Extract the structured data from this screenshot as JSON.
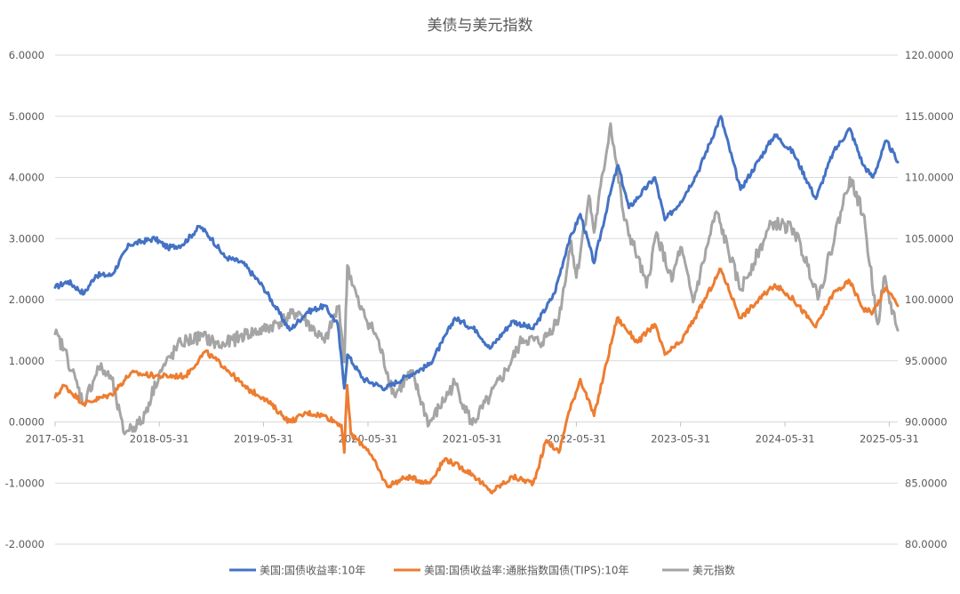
{
  "chart_data": {
    "type": "line",
    "title": "美债与美元指数",
    "x_ticks": [
      "2017-05-31",
      "2018-05-31",
      "2019-05-31",
      "2020-05-31",
      "2021-05-31",
      "2022-05-31",
      "2023-05-31",
      "2024-05-31",
      "2025-05-31"
    ],
    "x_range": [
      "2017-05-31",
      "2025-06-30"
    ],
    "y_left": {
      "min": -2,
      "max": 6,
      "step": 1,
      "tick_labels": [
        "-2.0000",
        "-1.0000",
        "0.0000",
        "1.0000",
        "2.0000",
        "3.0000",
        "4.0000",
        "5.0000",
        "6.0000"
      ]
    },
    "y_right": {
      "min": 80,
      "max": 120,
      "step": 5,
      "tick_labels": [
        "80.0000",
        "85.0000",
        "90.0000",
        "95.0000",
        "100.0000",
        "105.0000",
        "110.0000",
        "115.0000",
        "120.0000"
      ]
    },
    "grid": "horizontal",
    "legend_position": "bottom",
    "series": [
      {
        "name": "美国:国债收益率:10年",
        "axis": "left",
        "color": "#4472C4",
        "points": [
          [
            "2017-05-31",
            2.2
          ],
          [
            "2017-07-15",
            2.3
          ],
          [
            "2017-09-10",
            2.1
          ],
          [
            "2017-10-20",
            2.4
          ],
          [
            "2017-12-15",
            2.4
          ],
          [
            "2018-02-15",
            2.9
          ],
          [
            "2018-05-15",
            3.0
          ],
          [
            "2018-06-30",
            2.85
          ],
          [
            "2018-08-20",
            2.9
          ],
          [
            "2018-10-20",
            3.2
          ],
          [
            "2018-11-30",
            3.0
          ],
          [
            "2019-01-15",
            2.7
          ],
          [
            "2019-03-20",
            2.6
          ],
          [
            "2019-05-31",
            2.2
          ],
          [
            "2019-08-31",
            1.5
          ],
          [
            "2019-10-31",
            1.8
          ],
          [
            "2019-12-31",
            1.9
          ],
          [
            "2020-02-15",
            1.6
          ],
          [
            "2020-03-09",
            0.55
          ],
          [
            "2020-03-20",
            1.1
          ],
          [
            "2020-05-15",
            0.7
          ],
          [
            "2020-07-31",
            0.55
          ],
          [
            "2020-10-15",
            0.75
          ],
          [
            "2020-12-31",
            0.93
          ],
          [
            "2021-02-15",
            1.3
          ],
          [
            "2021-03-31",
            1.7
          ],
          [
            "2021-06-15",
            1.5
          ],
          [
            "2021-08-01",
            1.2
          ],
          [
            "2021-10-20",
            1.65
          ],
          [
            "2021-12-31",
            1.52
          ],
          [
            "2022-03-15",
            2.1
          ],
          [
            "2022-05-01",
            2.9
          ],
          [
            "2022-06-14",
            3.4
          ],
          [
            "2022-08-01",
            2.6
          ],
          [
            "2022-09-30",
            3.8
          ],
          [
            "2022-10-24",
            4.2
          ],
          [
            "2022-12-01",
            3.5
          ],
          [
            "2023-03-02",
            4.0
          ],
          [
            "2023-04-06",
            3.3
          ],
          [
            "2023-05-31",
            3.6
          ],
          [
            "2023-08-01",
            4.1
          ],
          [
            "2023-10-19",
            5.0
          ],
          [
            "2023-12-27",
            3.8
          ],
          [
            "2024-04-25",
            4.7
          ],
          [
            "2024-06-30",
            4.4
          ],
          [
            "2024-09-16",
            3.65
          ],
          [
            "2024-11-15",
            4.4
          ],
          [
            "2025-01-13",
            4.8
          ],
          [
            "2025-03-01",
            4.2
          ],
          [
            "2025-04-04",
            4.0
          ],
          [
            "2025-05-21",
            4.6
          ],
          [
            "2025-06-30",
            4.25
          ]
        ]
      },
      {
        "name": "美国:国债收益率:通胀指数国债(TIPS):10年",
        "axis": "left",
        "color": "#ED7D31",
        "points": [
          [
            "2017-05-31",
            0.4
          ],
          [
            "2017-07-01",
            0.6
          ],
          [
            "2017-09-08",
            0.3
          ],
          [
            "2017-12-15",
            0.45
          ],
          [
            "2018-02-20",
            0.8
          ],
          [
            "2018-05-31",
            0.75
          ],
          [
            "2018-08-31",
            0.75
          ],
          [
            "2018-11-08",
            1.15
          ],
          [
            "2019-01-15",
            0.9
          ],
          [
            "2019-03-31",
            0.55
          ],
          [
            "2019-05-31",
            0.4
          ],
          [
            "2019-08-31",
            0.0
          ],
          [
            "2019-10-31",
            0.15
          ],
          [
            "2019-12-31",
            0.1
          ],
          [
            "2020-02-28",
            -0.05
          ],
          [
            "2020-03-09",
            -0.5
          ],
          [
            "2020-03-19",
            0.6
          ],
          [
            "2020-04-01",
            -0.2
          ],
          [
            "2020-05-31",
            -0.45
          ],
          [
            "2020-08-06",
            -1.05
          ],
          [
            "2020-10-15",
            -0.9
          ],
          [
            "2020-12-31",
            -1.0
          ],
          [
            "2021-02-25",
            -0.6
          ],
          [
            "2021-05-31",
            -0.85
          ],
          [
            "2021-08-04",
            -1.15
          ],
          [
            "2021-10-20",
            -0.9
          ],
          [
            "2021-12-31",
            -1.0
          ],
          [
            "2022-02-15",
            -0.3
          ],
          [
            "2022-03-31",
            -0.5
          ],
          [
            "2022-05-01",
            0.1
          ],
          [
            "2022-06-14",
            0.7
          ],
          [
            "2022-08-01",
            0.1
          ],
          [
            "2022-10-21",
            1.7
          ],
          [
            "2022-12-31",
            1.3
          ],
          [
            "2023-03-01",
            1.6
          ],
          [
            "2023-04-06",
            1.1
          ],
          [
            "2023-05-31",
            1.3
          ],
          [
            "2023-08-01",
            1.8
          ],
          [
            "2023-10-19",
            2.5
          ],
          [
            "2023-12-27",
            1.7
          ],
          [
            "2024-04-25",
            2.25
          ],
          [
            "2024-06-30",
            2.0
          ],
          [
            "2024-09-16",
            1.55
          ],
          [
            "2024-11-15",
            2.1
          ],
          [
            "2025-01-13",
            2.3
          ],
          [
            "2025-03-01",
            1.85
          ],
          [
            "2025-04-04",
            1.8
          ],
          [
            "2025-05-21",
            2.2
          ],
          [
            "2025-06-30",
            1.9
          ]
        ]
      },
      {
        "name": "美元指数",
        "axis": "right",
        "color": "#A5A5A5",
        "points": [
          [
            "2017-05-31",
            97.2
          ],
          [
            "2017-07-01",
            96.0
          ],
          [
            "2017-09-08",
            91.5
          ],
          [
            "2017-10-31",
            94.5
          ],
          [
            "2017-12-15",
            93.5
          ],
          [
            "2018-01-25",
            89.2
          ],
          [
            "2018-03-31",
            90.0
          ],
          [
            "2018-05-31",
            94.0
          ],
          [
            "2018-08-15",
            96.5
          ],
          [
            "2018-10-31",
            97.0
          ],
          [
            "2018-12-31",
            96.2
          ],
          [
            "2019-03-31",
            97.2
          ],
          [
            "2019-05-31",
            97.5
          ],
          [
            "2019-09-30",
            99.0
          ],
          [
            "2019-12-31",
            96.5
          ],
          [
            "2020-02-20",
            99.5
          ],
          [
            "2020-03-09",
            94.9
          ],
          [
            "2020-03-20",
            102.8
          ],
          [
            "2020-04-30",
            99.5
          ],
          [
            "2020-06-30",
            97.0
          ],
          [
            "2020-08-31",
            92.2
          ],
          [
            "2020-10-31",
            94.0
          ],
          [
            "2020-12-31",
            89.8
          ],
          [
            "2021-03-31",
            93.2
          ],
          [
            "2021-05-31",
            89.8
          ],
          [
            "2021-07-31",
            92.0
          ],
          [
            "2021-09-30",
            94.3
          ],
          [
            "2021-11-24",
            96.8
          ],
          [
            "2022-01-31",
            96.5
          ],
          [
            "2022-03-31",
            98.5
          ],
          [
            "2022-05-13",
            104.8
          ],
          [
            "2022-05-31",
            101.8
          ],
          [
            "2022-07-14",
            108.5
          ],
          [
            "2022-08-01",
            105.5
          ],
          [
            "2022-09-28",
            114.4
          ],
          [
            "2022-11-15",
            106.5
          ],
          [
            "2022-12-31",
            103.5
          ],
          [
            "2023-02-01",
            101.0
          ],
          [
            "2023-03-08",
            105.5
          ],
          [
            "2023-04-30",
            101.5
          ],
          [
            "2023-05-31",
            104.3
          ],
          [
            "2023-07-14",
            99.8
          ],
          [
            "2023-10-03",
            107.2
          ],
          [
            "2023-12-27",
            100.8
          ],
          [
            "2024-04-16",
            106.3
          ],
          [
            "2024-06-30",
            105.8
          ],
          [
            "2024-09-27",
            100.3
          ],
          [
            "2025-01-13",
            110.0
          ],
          [
            "2025-03-01",
            107.0
          ],
          [
            "2025-04-21",
            98.0
          ],
          [
            "2025-05-12",
            101.8
          ],
          [
            "2025-06-30",
            97.5
          ]
        ]
      }
    ]
  }
}
